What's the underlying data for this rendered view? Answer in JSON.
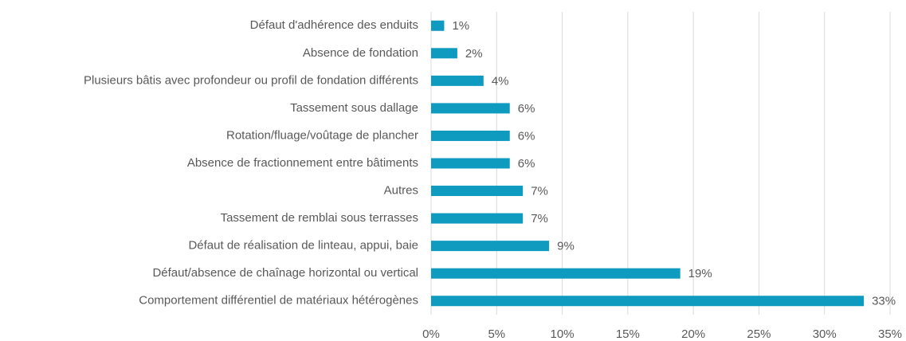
{
  "chart_data": {
    "type": "bar",
    "orientation": "horizontal",
    "categories": [
      "Défaut d'adhérence des enduits",
      "Absence de fondation",
      "Plusieurs bâtis avec profondeur ou profil de fondation différents",
      "Tassement sous dallage",
      "Rotation/fluage/voûtage de plancher",
      "Absence de fractionnement entre bâtiments",
      "Autres",
      "Tassement de remblai sous terrasses",
      "Défaut de réalisation de linteau, appui, baie",
      "Défaut/absence de chaînage horizontal ou vertical",
      "Comportement différentiel de matériaux hétérogènes"
    ],
    "values": [
      1,
      2,
      4,
      6,
      6,
      6,
      7,
      7,
      9,
      19,
      33
    ],
    "value_labels": [
      "1%",
      "2%",
      "4%",
      "6%",
      "6%",
      "6%",
      "7%",
      "7%",
      "9%",
      "19%",
      "33%"
    ],
    "color": "#0e9bbf",
    "xlim": [
      0,
      35
    ],
    "xticks": [
      {
        "value": 0,
        "label": "0%"
      },
      {
        "value": 5,
        "label": "5%"
      },
      {
        "value": 10,
        "label": "10%"
      },
      {
        "value": 15,
        "label": "15%"
      },
      {
        "value": 20,
        "label": "20%"
      },
      {
        "value": 25,
        "label": "25%"
      },
      {
        "value": 30,
        "label": "30%"
      },
      {
        "value": 35,
        "label": "35%"
      }
    ],
    "grid": true
  }
}
